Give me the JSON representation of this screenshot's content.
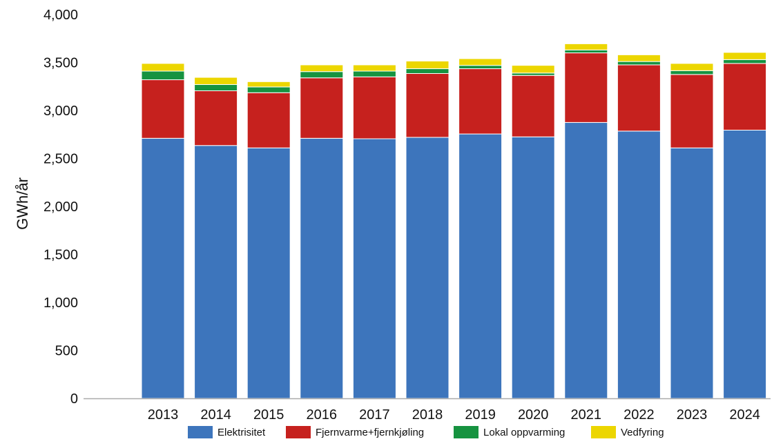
{
  "chart_data": {
    "type": "bar",
    "stacked": true,
    "ylabel": "GWh/år",
    "xlabel": "",
    "ylim": [
      0,
      4000
    ],
    "yticks": [
      0,
      500,
      1000,
      1500,
      2000,
      2500,
      3000,
      3500,
      4000
    ],
    "ytick_labels": [
      "0",
      "500",
      "1,000",
      "1,500",
      "2,000",
      "2,500",
      "3,000",
      "3,500",
      "4,000"
    ],
    "grid": false,
    "legend_position": "bottom",
    "categories": [
      "2013",
      "2014",
      "2015",
      "2016",
      "2017",
      "2018",
      "2019",
      "2020",
      "2021",
      "2022",
      "2023",
      "2024"
    ],
    "series": [
      {
        "name": "Elektrisitet",
        "color": "#3d75bc",
        "values": [
          2710,
          2635,
          2610,
          2710,
          2705,
          2720,
          2755,
          2725,
          2875,
          2785,
          2610,
          2795
        ]
      },
      {
        "name": "Fjernvarme+fjernkjøling",
        "color": "#c6211e",
        "values": [
          610,
          570,
          575,
          630,
          645,
          665,
          680,
          640,
          725,
          690,
          765,
          695
        ]
      },
      {
        "name": "Lokal oppvarming",
        "color": "#169340",
        "values": [
          90,
          65,
          60,
          65,
          60,
          50,
          35,
          25,
          30,
          35,
          40,
          40
        ]
      },
      {
        "name": "Vedfyring",
        "color": "#ecd600",
        "values": [
          80,
          75,
          55,
          70,
          65,
          80,
          70,
          80,
          65,
          70,
          75,
          75
        ]
      }
    ]
  }
}
